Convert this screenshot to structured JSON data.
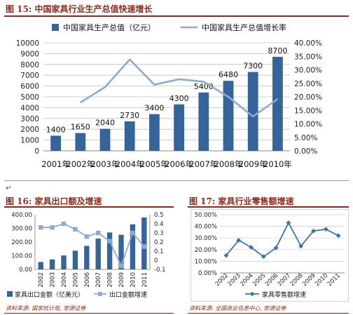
{
  "figures": {
    "fig15": {
      "title": "图 15:  中国家具行业生产总值快速增长"
    },
    "fig16": {
      "title": "图 16:  家具出口额及增速",
      "source": "资料来源:  国家统计局, 宏源证券"
    },
    "fig17": {
      "title": "图 17:  家具行业零售额增速",
      "source": "资料来源:  全国商业信息中心, 宏源证券"
    }
  },
  "colors": {
    "bar": "#35649a",
    "line": "#8eaad0",
    "accent": "#8b2b1c",
    "fig17_line": "#3e73a8"
  },
  "chart_data": [
    {
      "id": "fig15",
      "type": "bar",
      "categories": [
        "2001年",
        "2002年",
        "2003年",
        "2004年",
        "2005年",
        "2006年",
        "2007年",
        "2008年",
        "2009年",
        "2010年"
      ],
      "series": [
        {
          "name": "中国家具生产总值（亿元）",
          "type": "bar",
          "axis": "left",
          "values": [
            1400,
            1650,
            2040,
            2730,
            3400,
            4300,
            5400,
            6480,
            7300,
            8700
          ]
        },
        {
          "name": "中国家具生产总值增长率",
          "type": "line",
          "axis": "right",
          "values": [
            null,
            17.9,
            23.6,
            33.8,
            24.5,
            26.5,
            25.6,
            20.0,
            12.7,
            19.2
          ]
        }
      ],
      "y_left": {
        "min": 0,
        "max": 10000,
        "step": 1000
      },
      "y_right": {
        "min": 0,
        "max": 40,
        "step": 5,
        "format": "percent2"
      },
      "data_labels": [
        "1400",
        "1650",
        "2040",
        "2730",
        "3400",
        "4300",
        "5400",
        "6480",
        "7300",
        "8700"
      ],
      "grid": true,
      "legend": "top"
    },
    {
      "id": "fig16",
      "type": "bar",
      "categories": [
        "2002",
        "2003",
        "2004",
        "2005",
        "2006",
        "2007",
        "2008",
        "2009",
        "2010",
        "2011"
      ],
      "series": [
        {
          "name": "家具出口金额（亿美元）",
          "type": "bar",
          "axis": "left",
          "values": [
            54,
            73,
            102,
            137,
            172,
            225,
            270,
            253,
            330,
            380
          ]
        },
        {
          "name": "出口金额增速",
          "type": "line",
          "axis": "right",
          "values": [
            0.36,
            0.36,
            0.4,
            0.34,
            0.26,
            0.3,
            0.21,
            -0.06,
            0.3,
            0.15
          ]
        }
      ],
      "y_left": {
        "min": 0,
        "max": 400,
        "step": 100,
        "format": "fixed2"
      },
      "y_right": {
        "min": -0.1,
        "max": 0.5,
        "step": 0.1,
        "format": "trim1"
      },
      "grid": false,
      "legend": "bottom"
    },
    {
      "id": "fig17",
      "type": "line",
      "categories": [
        "2002",
        "2003",
        "2004",
        "2005",
        "2006",
        "2007",
        "2008",
        "2009",
        "2010",
        "2011"
      ],
      "series": [
        {
          "name": "家具零售额增速",
          "type": "line",
          "axis": "left",
          "values": [
            15,
            28,
            22,
            14,
            21.5,
            43,
            23,
            36,
            37.5,
            32
          ]
        }
      ],
      "y_left": {
        "min": 0,
        "max": 50,
        "step": 10,
        "format": "percent2"
      },
      "grid": true,
      "legend": "bottom"
    }
  ]
}
